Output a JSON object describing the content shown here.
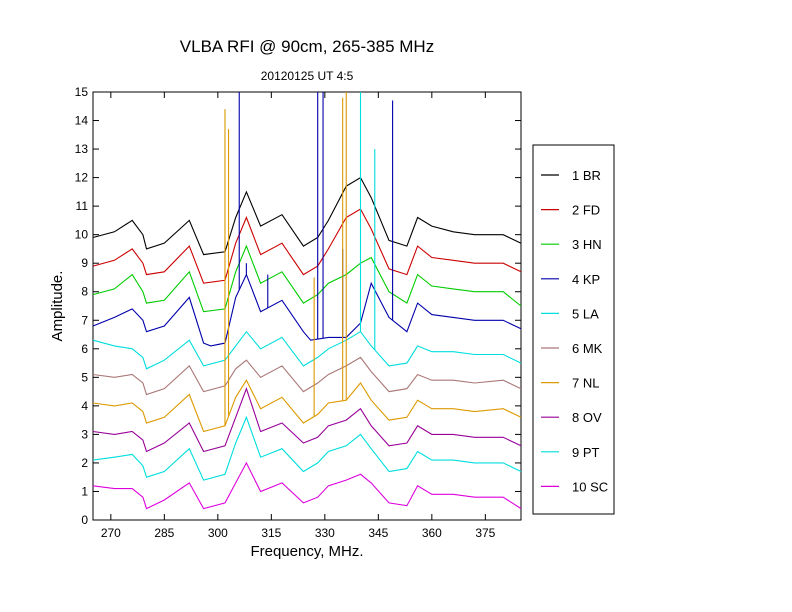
{
  "chart_data": {
    "type": "line",
    "title": "VLBA RFI @ 90cm, 265-385 MHz",
    "subtitle": "20120125   UT 4:5",
    "xlabel": "Frequency, MHz.",
    "ylabel": "Amplitude.",
    "xlim": [
      265,
      385
    ],
    "ylim": [
      0,
      15
    ],
    "xticks": [
      270,
      285,
      300,
      315,
      330,
      345,
      360,
      375
    ],
    "yticks": [
      0,
      1,
      2,
      3,
      4,
      5,
      6,
      7,
      8,
      9,
      10,
      11,
      12,
      13,
      14,
      15
    ],
    "grid": false,
    "legend_position": "right",
    "series": [
      {
        "name": "1 BR",
        "color": "#000000",
        "x": [
          265,
          271,
          276,
          279,
          280,
          285,
          292,
          296,
          302,
          305,
          308,
          312,
          318,
          324,
          328,
          331,
          336,
          340,
          343,
          348,
          353,
          356,
          360,
          366,
          372,
          380,
          385
        ],
        "y": [
          9.9,
          10.1,
          10.5,
          10.0,
          9.5,
          9.7,
          10.5,
          9.3,
          9.4,
          10.6,
          11.5,
          10.3,
          10.7,
          9.6,
          9.9,
          10.5,
          11.7,
          12.0,
          11.3,
          9.8,
          9.6,
          10.6,
          10.3,
          10.1,
          10.0,
          10.0,
          9.7
        ]
      },
      {
        "name": "2 FD",
        "color": "#cc0000",
        "x": [
          265,
          271,
          276,
          279,
          280,
          285,
          292,
          296,
          302,
          305,
          308,
          312,
          318,
          324,
          328,
          331,
          336,
          340,
          343,
          348,
          353,
          356,
          360,
          366,
          372,
          380,
          385
        ],
        "y": [
          8.9,
          9.1,
          9.5,
          9.0,
          8.6,
          8.7,
          9.6,
          8.3,
          8.4,
          9.7,
          10.6,
          9.3,
          9.7,
          8.6,
          8.9,
          9.5,
          10.6,
          10.9,
          10.2,
          8.8,
          8.6,
          9.6,
          9.2,
          9.1,
          9.0,
          9.0,
          8.7
        ]
      },
      {
        "name": "3 HN",
        "color": "#00cc00",
        "x": [
          265,
          271,
          276,
          279,
          280,
          285,
          292,
          296,
          302,
          305,
          308,
          312,
          318,
          324,
          328,
          331,
          336,
          340,
          343,
          348,
          353,
          356,
          360,
          366,
          372,
          380,
          385
        ],
        "y": [
          7.9,
          8.1,
          8.6,
          8.0,
          7.6,
          7.7,
          8.7,
          7.3,
          7.4,
          8.7,
          9.6,
          8.3,
          8.7,
          7.6,
          7.9,
          8.3,
          8.6,
          9.0,
          9.2,
          8.0,
          7.6,
          8.6,
          8.2,
          8.1,
          8.0,
          8.0,
          7.5
        ]
      },
      {
        "name": "4 KP",
        "color": "#0000aa",
        "x": [
          265,
          271,
          276,
          279,
          280,
          285,
          292,
          296,
          298,
          302,
          305,
          308,
          312,
          318,
          324,
          326,
          331,
          336,
          340,
          343,
          348,
          353,
          356,
          360,
          366,
          372,
          380,
          385
        ],
        "y": [
          6.8,
          7.1,
          7.4,
          7.0,
          6.6,
          6.8,
          7.8,
          6.2,
          6.1,
          6.2,
          7.8,
          8.6,
          7.3,
          7.7,
          6.6,
          6.3,
          6.4,
          6.4,
          6.9,
          8.3,
          7.1,
          6.6,
          7.6,
          7.2,
          7.1,
          7.0,
          7.0,
          6.7
        ]
      },
      {
        "name": "5 LA",
        "color": "#00dddd",
        "x": [
          265,
          271,
          276,
          279,
          280,
          285,
          292,
          296,
          302,
          305,
          308,
          312,
          318,
          324,
          328,
          331,
          336,
          340,
          343,
          348,
          353,
          356,
          360,
          366,
          372,
          380,
          385
        ],
        "y": [
          6.3,
          6.1,
          6.0,
          5.7,
          5.3,
          5.6,
          6.3,
          5.4,
          5.6,
          6.1,
          6.6,
          6.0,
          6.4,
          5.4,
          5.7,
          6.0,
          6.3,
          6.6,
          6.1,
          5.4,
          5.5,
          6.1,
          5.9,
          5.9,
          5.8,
          5.8,
          5.5
        ]
      },
      {
        "name": "6 MK",
        "color": "#aa7777",
        "x": [
          265,
          271,
          276,
          279,
          280,
          285,
          292,
          296,
          302,
          305,
          308,
          312,
          318,
          324,
          328,
          331,
          336,
          340,
          343,
          348,
          353,
          356,
          360,
          366,
          372,
          380,
          385
        ],
        "y": [
          5.1,
          5.0,
          5.1,
          4.8,
          4.4,
          4.6,
          5.4,
          4.5,
          4.7,
          5.3,
          5.6,
          5.0,
          5.4,
          4.5,
          4.8,
          5.1,
          5.4,
          5.7,
          5.2,
          4.5,
          4.6,
          5.1,
          4.9,
          4.9,
          4.8,
          4.9,
          4.6
        ]
      },
      {
        "name": "7 NL",
        "color": "#dd9900",
        "x": [
          265,
          271,
          276,
          279,
          280,
          285,
          292,
          296,
          302,
          305,
          308,
          312,
          318,
          324,
          328,
          331,
          336,
          340,
          343,
          348,
          353,
          356,
          360,
          366,
          372,
          380,
          385
        ],
        "y": [
          4.1,
          4.0,
          4.1,
          3.8,
          3.4,
          3.6,
          4.4,
          3.1,
          3.3,
          4.3,
          4.9,
          3.9,
          4.3,
          3.4,
          3.7,
          4.1,
          4.2,
          4.8,
          4.2,
          3.5,
          3.6,
          4.2,
          3.9,
          3.9,
          3.8,
          3.9,
          3.6
        ]
      },
      {
        "name": "8 OV",
        "color": "#990099",
        "x": [
          265,
          271,
          276,
          279,
          280,
          285,
          292,
          296,
          302,
          305,
          308,
          312,
          318,
          324,
          328,
          331,
          336,
          340,
          343,
          348,
          353,
          356,
          360,
          366,
          372,
          380,
          385
        ],
        "y": [
          3.1,
          3.0,
          3.1,
          2.8,
          2.4,
          2.7,
          3.4,
          2.4,
          2.6,
          3.6,
          4.6,
          3.1,
          3.4,
          2.7,
          2.9,
          3.3,
          3.5,
          3.9,
          3.3,
          2.6,
          2.7,
          3.3,
          3.0,
          3.0,
          2.9,
          2.9,
          2.6
        ]
      },
      {
        "name": "9 PT",
        "color": "#00dddd",
        "x": [
          265,
          271,
          276,
          279,
          280,
          285,
          292,
          296,
          302,
          305,
          308,
          312,
          318,
          324,
          328,
          331,
          336,
          340,
          343,
          348,
          353,
          356,
          360,
          366,
          372,
          380,
          385
        ],
        "y": [
          2.1,
          2.2,
          2.3,
          1.9,
          1.5,
          1.7,
          2.5,
          1.4,
          1.6,
          2.7,
          3.6,
          2.2,
          2.5,
          1.7,
          2.0,
          2.4,
          2.6,
          3.0,
          2.5,
          1.7,
          1.8,
          2.4,
          2.1,
          2.1,
          2.0,
          2.0,
          1.7
        ]
      },
      {
        "name": "10 SC",
        "color": "#dd00dd",
        "x": [
          265,
          271,
          276,
          279,
          280,
          285,
          292,
          296,
          302,
          305,
          308,
          312,
          318,
          324,
          328,
          331,
          336,
          340,
          343,
          348,
          353,
          356,
          360,
          366,
          372,
          380,
          385
        ],
        "y": [
          1.2,
          1.1,
          1.1,
          0.8,
          0.4,
          0.7,
          1.3,
          0.4,
          0.6,
          1.3,
          2.0,
          1.0,
          1.3,
          0.6,
          0.8,
          1.2,
          1.4,
          1.6,
          1.3,
          0.6,
          0.5,
          1.2,
          0.9,
          0.9,
          0.8,
          0.8,
          0.4
        ]
      }
    ],
    "spikes": [
      {
        "series": "4 KP",
        "x": 306,
        "y": 15.0
      },
      {
        "series": "4 KP",
        "x": 308,
        "y": 9.0
      },
      {
        "series": "4 KP",
        "x": 314,
        "y": 8.6
      },
      {
        "series": "4 KP",
        "x": 328,
        "y": 15.0
      },
      {
        "series": "4 KP",
        "x": 329.5,
        "y": 15.0
      },
      {
        "series": "4 KP",
        "x": 335,
        "y": 9.5
      },
      {
        "series": "4 KP",
        "x": 349,
        "y": 14.7
      },
      {
        "series": "7 NL",
        "x": 302,
        "y": 14.4
      },
      {
        "series": "7 NL",
        "x": 303,
        "y": 13.7
      },
      {
        "series": "7 NL",
        "x": 327,
        "y": 8.5
      },
      {
        "series": "7 NL",
        "x": 335,
        "y": 14.8
      },
      {
        "series": "7 NL",
        "x": 336,
        "y": 15.0
      },
      {
        "series": "5 LA",
        "x": 340,
        "y": 15.0
      },
      {
        "series": "5 LA",
        "x": 344,
        "y": 13.0
      }
    ]
  }
}
